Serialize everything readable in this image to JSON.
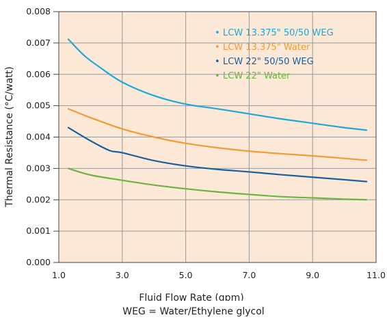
{
  "chart_data": {
    "type": "line",
    "title": "",
    "xlabel": "Fluid Flow Rate (gpm)",
    "ylabel": "Thermal Resistance (°C/watt)",
    "xlim": [
      1.0,
      11.0
    ],
    "ylim": [
      0.0,
      0.008
    ],
    "x_ticks": [
      "1.0",
      "3.0",
      "5.0",
      "7.0",
      "9.0",
      "11.0"
    ],
    "y_ticks": [
      "0.000",
      "0.001",
      "0.002",
      "0.003",
      "0.004",
      "0.005",
      "0.006",
      "0.007",
      "0.008"
    ],
    "grid": true,
    "legend_position": "top-right",
    "series": [
      {
        "name": "LCW 13.375\" 50/50 WEG",
        "color": "#1ea8d8",
        "points": [
          [
            1.3,
            0.00712
          ],
          [
            1.8,
            0.0066
          ],
          [
            2.3,
            0.00622
          ],
          [
            3.0,
            0.00575
          ],
          [
            4.0,
            0.00532
          ],
          [
            5.0,
            0.00505
          ],
          [
            6.0,
            0.0049
          ],
          [
            7.0,
            0.00474
          ],
          [
            8.0,
            0.00458
          ],
          [
            9.0,
            0.00444
          ],
          [
            10.0,
            0.0043
          ],
          [
            10.7,
            0.00422
          ]
        ]
      },
      {
        "name": "LCW 13.375\" Water",
        "color": "#f39a33",
        "points": [
          [
            1.3,
            0.0049
          ],
          [
            2.0,
            0.00462
          ],
          [
            3.0,
            0.00426
          ],
          [
            4.0,
            0.004
          ],
          [
            5.0,
            0.0038
          ],
          [
            6.0,
            0.00366
          ],
          [
            7.0,
            0.00355
          ],
          [
            8.0,
            0.00347
          ],
          [
            9.0,
            0.0034
          ],
          [
            10.0,
            0.00332
          ],
          [
            10.7,
            0.00326
          ]
        ]
      },
      {
        "name": "LCW 22\" 50/50 WEG",
        "color": "#1a5fa0",
        "points": [
          [
            1.3,
            0.0043
          ],
          [
            2.0,
            0.00388
          ],
          [
            2.6,
            0.00357
          ],
          [
            3.0,
            0.0035
          ],
          [
            4.0,
            0.00325
          ],
          [
            5.0,
            0.00308
          ],
          [
            6.0,
            0.00297
          ],
          [
            7.0,
            0.00289
          ],
          [
            8.0,
            0.0028
          ],
          [
            9.0,
            0.00272
          ],
          [
            10.0,
            0.00264
          ],
          [
            10.7,
            0.00258
          ]
        ]
      },
      {
        "name": "LCW 22\" Water",
        "color": "#6cb33f",
        "points": [
          [
            1.3,
            0.003
          ],
          [
            2.0,
            0.00279
          ],
          [
            3.0,
            0.00262
          ],
          [
            4.0,
            0.00247
          ],
          [
            5.0,
            0.00235
          ],
          [
            6.0,
            0.00225
          ],
          [
            7.0,
            0.00217
          ],
          [
            8.0,
            0.0021
          ],
          [
            9.0,
            0.00206
          ],
          [
            10.0,
            0.00202
          ],
          [
            10.7,
            0.002
          ]
        ]
      }
    ],
    "plot_background": "#fbe8d6",
    "grid_color": "#9a9a9a"
  },
  "footnote": "WEG = Water/Ethylene glycol"
}
